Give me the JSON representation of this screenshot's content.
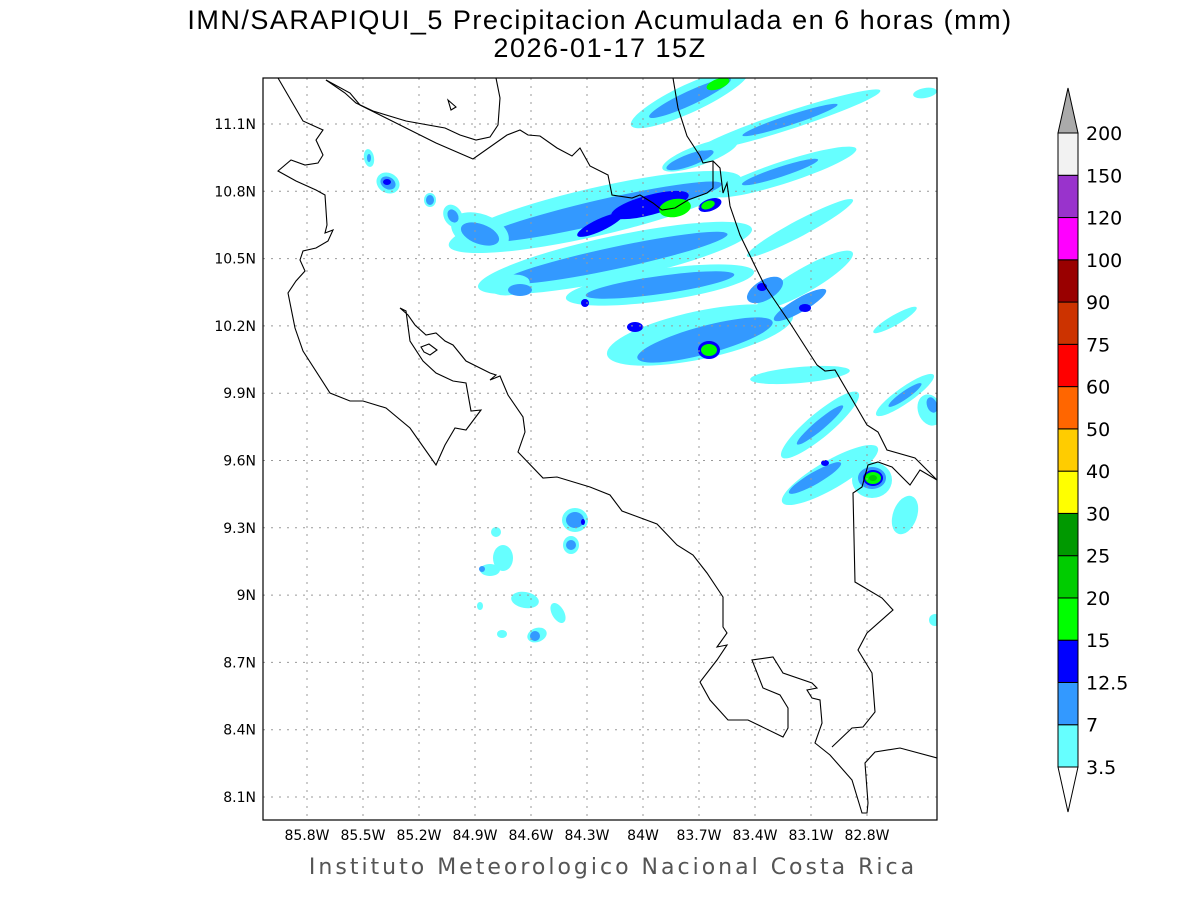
{
  "title": {
    "line1": "IMN/SARAPIQUI_5 Precipitacion Acumulada en 6 horas (mm)",
    "line2": "2026-01-17 15Z"
  },
  "footer": "Instituto Meteorologico Nacional Costa Rica",
  "map": {
    "lon_ticks": [
      "85.8W",
      "85.5W",
      "85.2W",
      "84.9W",
      "84.6W",
      "84.3W",
      "84W",
      "83.7W",
      "83.4W",
      "83.1W",
      "82.8W"
    ],
    "lat_ticks": [
      "11.1N",
      "10.8N",
      "10.5N",
      "10.2N",
      "9.9N",
      "9.6N",
      "9.3N",
      "9N",
      "8.7N",
      "8.4N",
      "8.1N"
    ],
    "lon_range": [
      -86.04,
      -82.43
    ],
    "lat_range": [
      8.0,
      11.3
    ]
  },
  "colorbar": {
    "labels": [
      "3.5",
      "7",
      "12.5",
      "15",
      "20",
      "25",
      "30",
      "40",
      "50",
      "60",
      "75",
      "90",
      "100",
      "120",
      "150",
      "200"
    ],
    "colors": [
      "#66ffff",
      "#3399ff",
      "#0000ff",
      "#00ff00",
      "#00cc00",
      "#009900",
      "#ffff00",
      "#ffcc00",
      "#ff6600",
      "#ff0000",
      "#cc3300",
      "#990000",
      "#ff00ff",
      "#9933cc",
      "#f2f2f2"
    ],
    "below_color": "#ffffff",
    "above_color": "#aaaaaa",
    "unit": "mm"
  }
}
